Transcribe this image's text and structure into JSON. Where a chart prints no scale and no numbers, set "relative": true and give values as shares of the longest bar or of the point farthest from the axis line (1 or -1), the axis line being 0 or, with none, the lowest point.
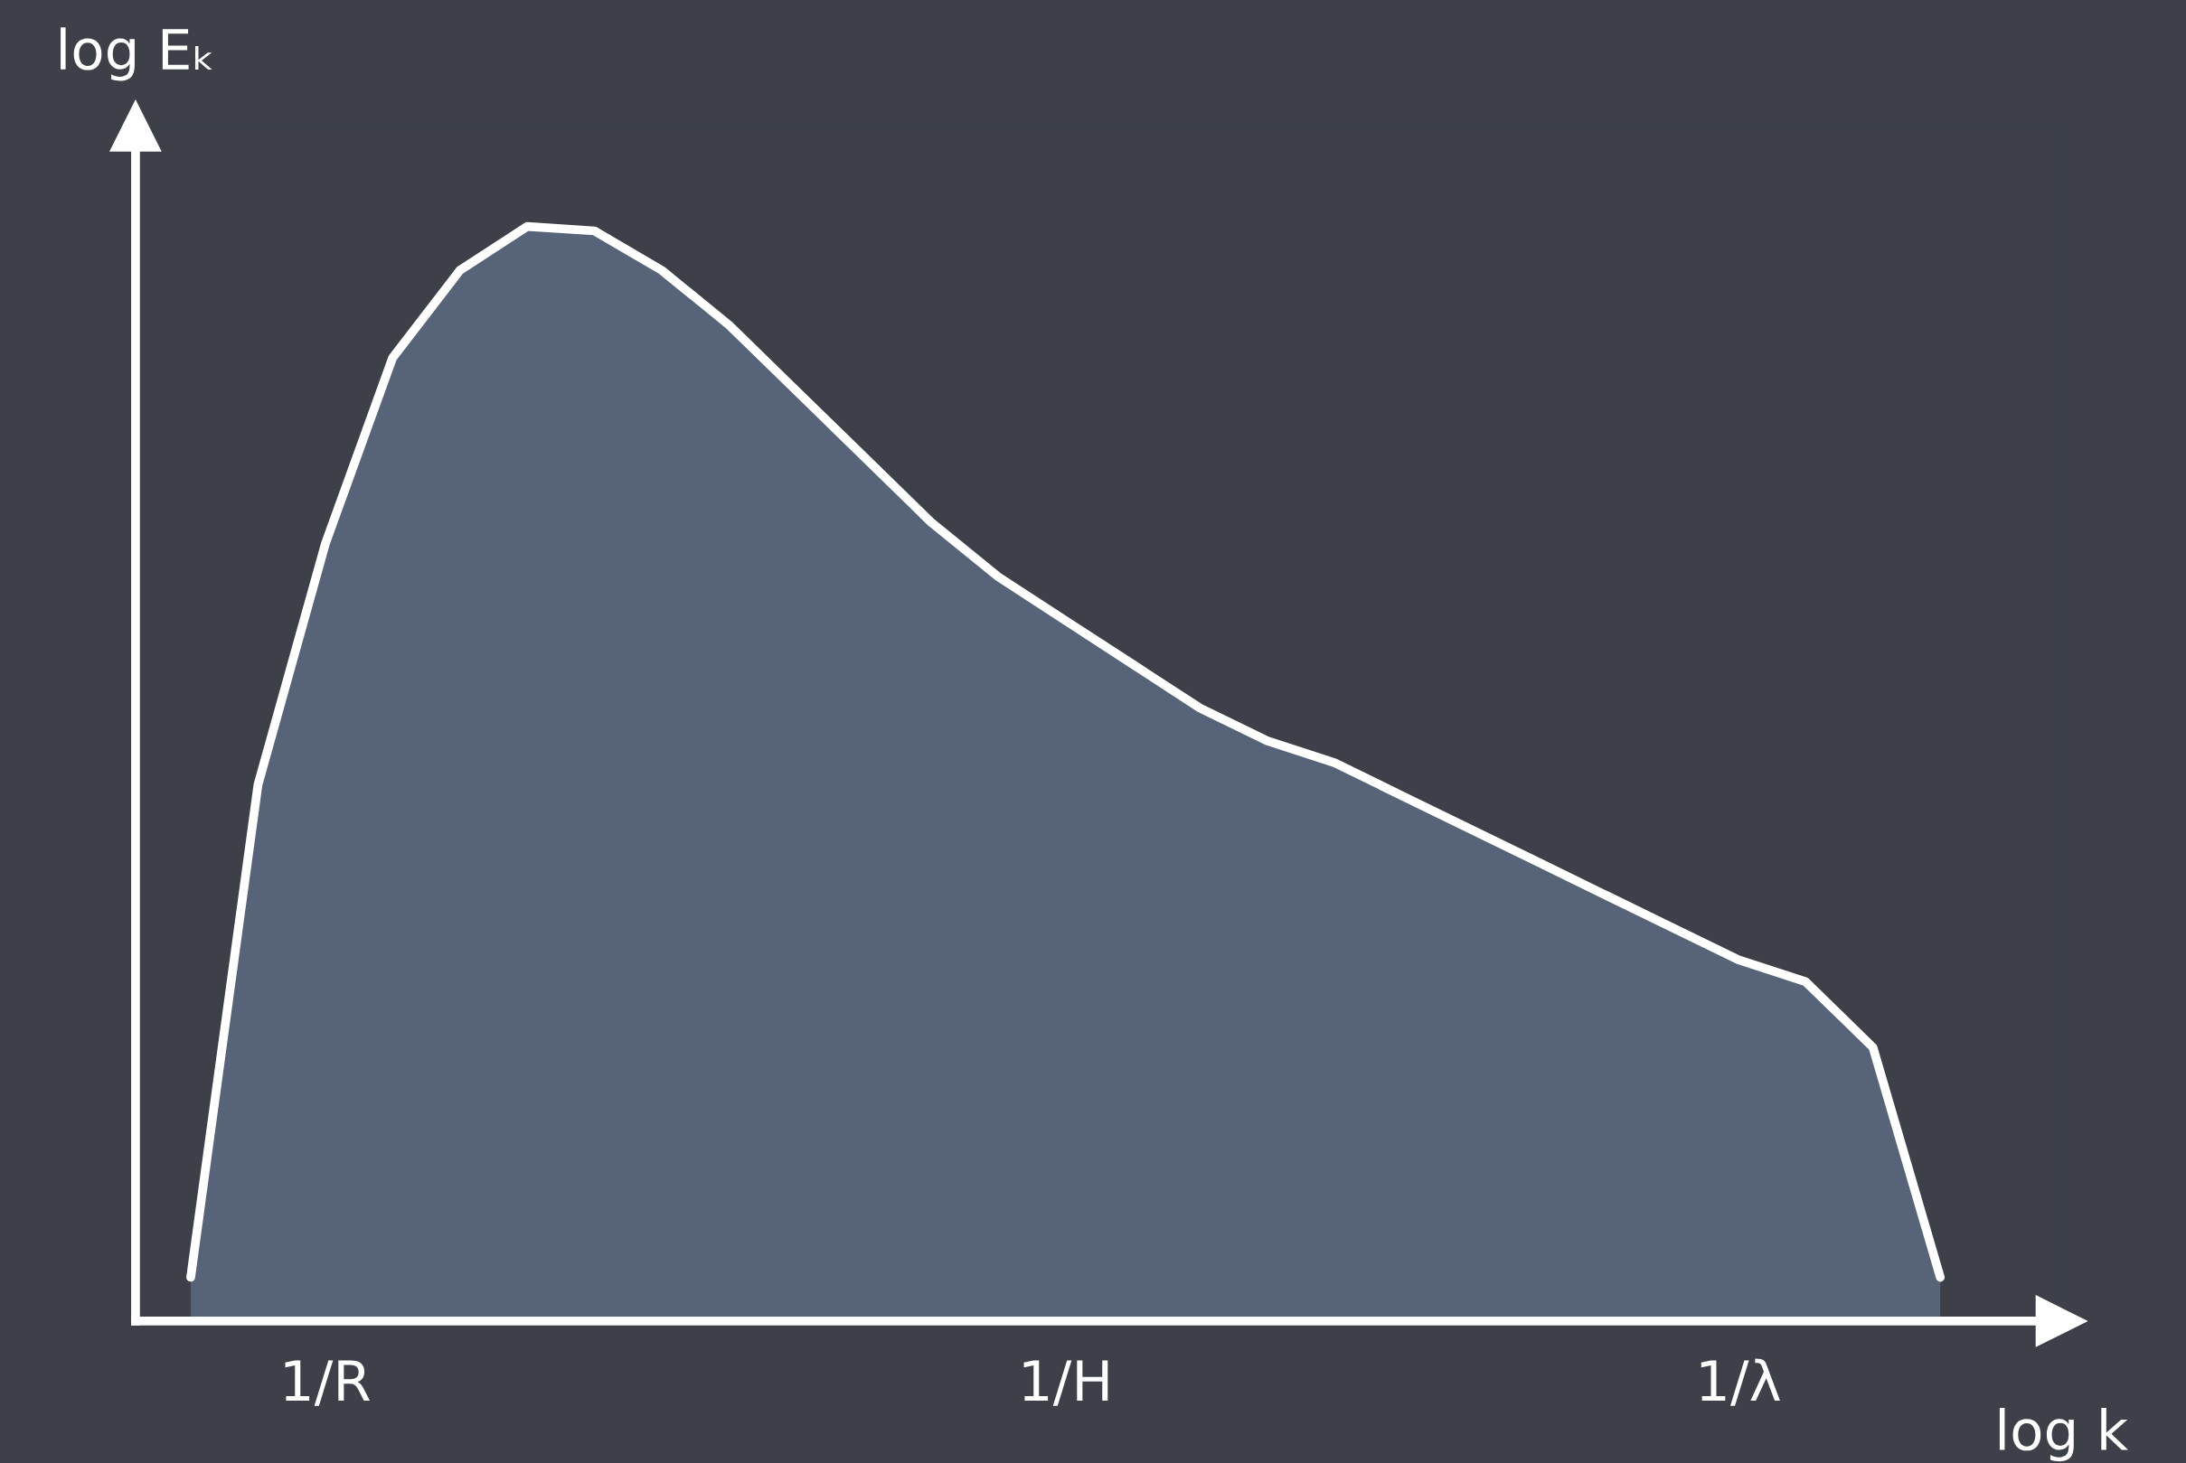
{
  "chart_data": {
    "type": "area",
    "relative": true,
    "xlabel": "log k",
    "ylabel": "log Eₖ",
    "categories": [
      null,
      null,
      "1/R",
      null,
      null,
      null,
      null,
      null,
      null,
      null,
      null,
      null,
      null,
      "1/H",
      null,
      null,
      null,
      null,
      null,
      null,
      null,
      null,
      null,
      "1/λ",
      null,
      null,
      null
    ],
    "series": [
      {
        "color": "#5f6f8a",
        "values": [
          0.04,
          0.49,
          0.71,
          0.88,
          0.96,
          1.0,
          0.996,
          0.96,
          0.91,
          0.85,
          0.79,
          0.73,
          0.68,
          0.64,
          0.6,
          0.56,
          0.53,
          0.51,
          0.48,
          0.45,
          0.42,
          0.39,
          0.36,
          0.33,
          0.31,
          0.25,
          0.04
        ]
      }
    ],
    "grid": false,
    "legend": false
  }
}
